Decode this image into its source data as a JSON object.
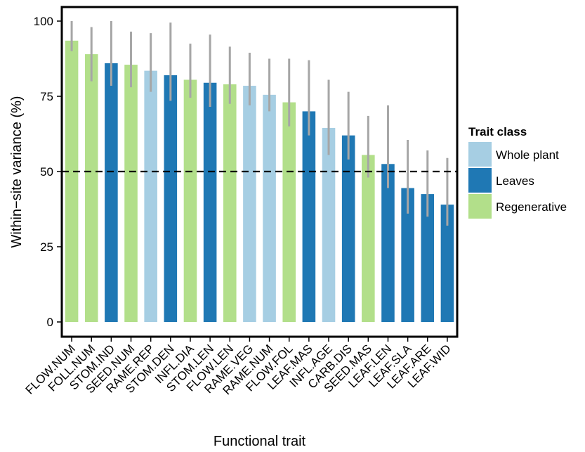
{
  "chart_data": {
    "type": "bar",
    "xlabel": "Functional trait",
    "ylabel": "Within−site variance (%)",
    "ylim": [
      0,
      103
    ],
    "yticks": [
      0,
      25,
      50,
      75,
      100
    ],
    "reference_line": 50,
    "grid": false,
    "legend_position": "right",
    "legend_title": "Trait class",
    "classes": [
      {
        "name": "Whole plant",
        "color": "#a6cee3"
      },
      {
        "name": "Leaves",
        "color": "#1f78b4"
      },
      {
        "name": "Regenerative",
        "color": "#b2df8a"
      }
    ],
    "error_bar_color": "#a6a6a6",
    "categories": [
      "FLOW.NUM",
      "FOLL.NUM",
      "STOM.IND",
      "SEED.NUM",
      "RAME.REP",
      "STOM.DEN",
      "INFL.DIA",
      "STOM.LEN",
      "FLOW.LEN",
      "RAME.VEG",
      "RAME.NUM",
      "FLOW.FOL",
      "LEAF.MAS",
      "INFL.AGE",
      "CARB.DIS",
      "SEED.MAS",
      "LEAF.LEN",
      "LEAF.SLA",
      "LEAF.ARE",
      "LEAF.WID"
    ],
    "class_of_bar": [
      "Regenerative",
      "Regenerative",
      "Leaves",
      "Regenerative",
      "Whole plant",
      "Leaves",
      "Regenerative",
      "Leaves",
      "Regenerative",
      "Whole plant",
      "Whole plant",
      "Regenerative",
      "Leaves",
      "Whole plant",
      "Leaves",
      "Regenerative",
      "Leaves",
      "Leaves",
      "Leaves",
      "Leaves"
    ],
    "values": [
      93.5,
      89,
      86,
      85.5,
      83.5,
      82,
      80.5,
      79.5,
      79,
      78.5,
      75.5,
      73,
      70,
      64.5,
      62,
      55.5,
      52.5,
      44.5,
      42.5,
      39
    ],
    "lower": [
      90,
      80,
      78.5,
      78,
      76.5,
      73.5,
      74.5,
      71.5,
      72.5,
      72,
      70,
      65,
      62,
      55.5,
      54,
      48,
      44.5,
      36,
      35,
      32
    ],
    "upper": [
      100,
      98,
      100,
      96.5,
      96,
      99.5,
      92.5,
      95.5,
      91.5,
      89.5,
      87.5,
      87.5,
      87,
      80.5,
      76.5,
      68.5,
      72,
      60.5,
      57,
      54.5
    ]
  }
}
